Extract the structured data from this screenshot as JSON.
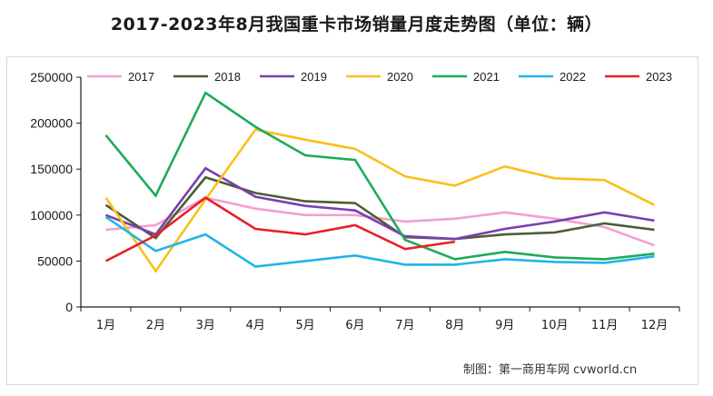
{
  "chart_data": {
    "type": "line",
    "title": "2017-2023年8月我国重卡市场销量月度走势图（单位：辆）",
    "xlabel": "",
    "ylabel": "",
    "categories": [
      "1月",
      "2月",
      "3月",
      "4月",
      "5月",
      "6月",
      "7月",
      "8月",
      "9月",
      "10月",
      "11月",
      "12月"
    ],
    "ylim": [
      0,
      250000
    ],
    "yticks": [
      "0",
      "50000",
      "100000",
      "150000",
      "200000",
      "250000"
    ],
    "ytick_values": [
      0,
      50000,
      100000,
      150000,
      200000,
      250000
    ],
    "grid": false,
    "legend_position": "top",
    "series": [
      {
        "name": "2017",
        "color": "#f59fd0",
        "values": [
          84000,
          89000,
          119000,
          107000,
          100000,
          100000,
          93000,
          96000,
          103000,
          96000,
          87000,
          67000
        ]
      },
      {
        "name": "2018",
        "color": "#4a5e33",
        "values": [
          111000,
          75000,
          141000,
          124000,
          115000,
          113000,
          76000,
          74000,
          79000,
          81000,
          91000,
          84000
        ]
      },
      {
        "name": "2019",
        "color": "#7a3fb0",
        "values": [
          100000,
          79000,
          151000,
          120000,
          110000,
          105000,
          77000,
          74000,
          85000,
          93000,
          103000,
          94000
        ]
      },
      {
        "name": "2020",
        "color": "#fbbf1a",
        "values": [
          119000,
          39000,
          117000,
          193000,
          182000,
          172000,
          142000,
          132000,
          153000,
          140000,
          138000,
          111000
        ]
      },
      {
        "name": "2021",
        "color": "#1faa59",
        "values": [
          187000,
          121000,
          233000,
          196000,
          165000,
          160000,
          73000,
          52000,
          60000,
          54000,
          52000,
          58000
        ]
      },
      {
        "name": "2022",
        "color": "#22b4ea",
        "values": [
          98000,
          61000,
          79000,
          44000,
          50000,
          56000,
          46000,
          46000,
          52000,
          49000,
          48000,
          55000
        ]
      },
      {
        "name": "2023",
        "color": "#e8202a",
        "values": [
          50000,
          78000,
          119000,
          85000,
          79000,
          89000,
          63000,
          71000
        ]
      }
    ]
  },
  "credit": "制图：第一商用车网  cvworld.cn"
}
